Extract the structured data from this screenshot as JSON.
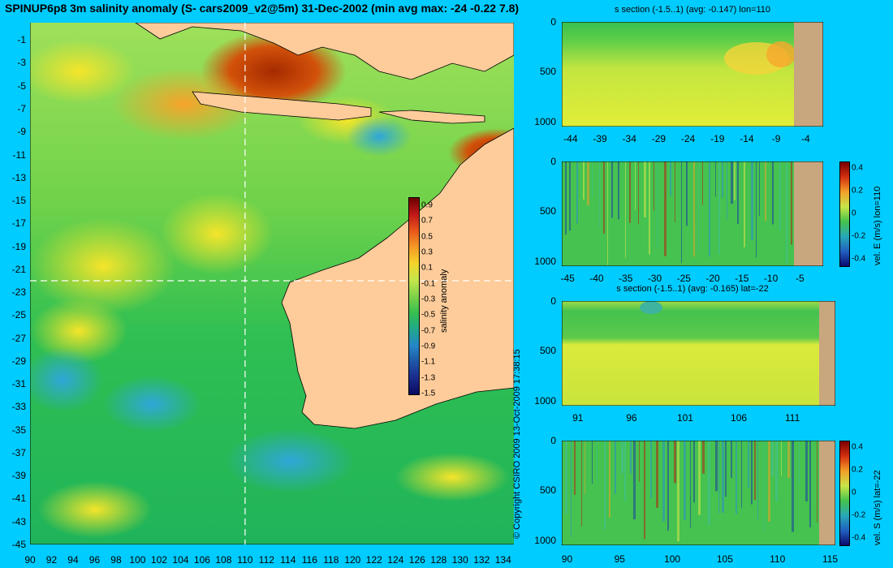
{
  "title": "SPINUP6p8 3m salinity anomaly (S- cars2009_v2@5m) 31-Dec-2002 (min avg max: -24 -0.22 7.8)",
  "copyright": "© Copyright CSIRO 2009  13-Oct-2009 17:38:15",
  "colors": {
    "background": "#00ccff",
    "land": "#fdcc9a",
    "section_land": "#c8a67e"
  },
  "chart_data": [
    {
      "type": "heatmap",
      "name": "map",
      "x_ticks": [
        "90",
        "92",
        "94",
        "96",
        "98",
        "100",
        "102",
        "104",
        "106",
        "108",
        "110",
        "112",
        "114",
        "116",
        "118",
        "120",
        "122",
        "124",
        "126",
        "128",
        "130",
        "132",
        "134"
      ],
      "y_ticks": [
        "-1",
        "-3",
        "-5",
        "-7",
        "-9",
        "-11",
        "-13",
        "-15",
        "-17",
        "-19",
        "-21",
        "-23",
        "-25",
        "-27",
        "-29",
        "-31",
        "-33",
        "-35",
        "-37",
        "-39",
        "-41",
        "-43",
        "-45"
      ],
      "xlim": [
        90,
        135
      ],
      "ylim": [
        -45,
        0.5
      ],
      "section_lon": 110,
      "section_lat": -22,
      "colorbar": {
        "label": "salinity anomaly",
        "ticks": [
          "0.9",
          "0.7",
          "0.5",
          "0.3",
          "0.1",
          "-0.1",
          "-0.3",
          "-0.5",
          "-0.7",
          "-0.9",
          "-1.1",
          "-1.3",
          "-1.5"
        ],
        "range": [
          -1.5,
          1.0
        ]
      }
    },
    {
      "type": "heatmap",
      "name": "s-section-lon",
      "title": "s section (-1.5..1) (avg: -0.147) lon=110",
      "x_ticks": [
        "-44",
        "-39",
        "-34",
        "-29",
        "-24",
        "-19",
        "-14",
        "-9",
        "-4"
      ],
      "y_ticks": [
        "0",
        "500",
        "1000"
      ],
      "xlim": [
        -45.5,
        -1
      ],
      "ylim": [
        0,
        1050
      ]
    },
    {
      "type": "heatmap",
      "name": "vel-e-lon",
      "x_ticks": [
        "-45",
        "-40",
        "-35",
        "-30",
        "-25",
        "-20",
        "-15",
        "-10",
        "-5"
      ],
      "y_ticks": [
        "0",
        "500",
        "1000"
      ],
      "xlim": [
        -46,
        -1
      ],
      "ylim": [
        0,
        1050
      ],
      "colorbar": {
        "label": "vel. E (m/s) lon=110",
        "ticks": [
          "0.4",
          "0.2",
          "0",
          "-0.2",
          "-0.4"
        ]
      }
    },
    {
      "type": "heatmap",
      "name": "s-section-lat",
      "title": "s section (-1.5..1) (avg: -0.165) lat=-22",
      "x_ticks": [
        "91",
        "96",
        "101",
        "106",
        "111"
      ],
      "y_ticks": [
        "0",
        "500",
        "1000"
      ],
      "xlim": [
        89.5,
        115
      ],
      "ylim": [
        0,
        1050
      ]
    },
    {
      "type": "heatmap",
      "name": "vel-s-lat",
      "x_ticks": [
        "90",
        "95",
        "100",
        "105",
        "110",
        "115"
      ],
      "y_ticks": [
        "0",
        "500",
        "1000"
      ],
      "xlim": [
        89.5,
        115.5
      ],
      "ylim": [
        0,
        1050
      ],
      "colorbar": {
        "label": "vel. S (m/s) lat=-22",
        "ticks": [
          "0.4",
          "0.2",
          "0",
          "-0.2",
          "-0.4"
        ]
      }
    }
  ]
}
